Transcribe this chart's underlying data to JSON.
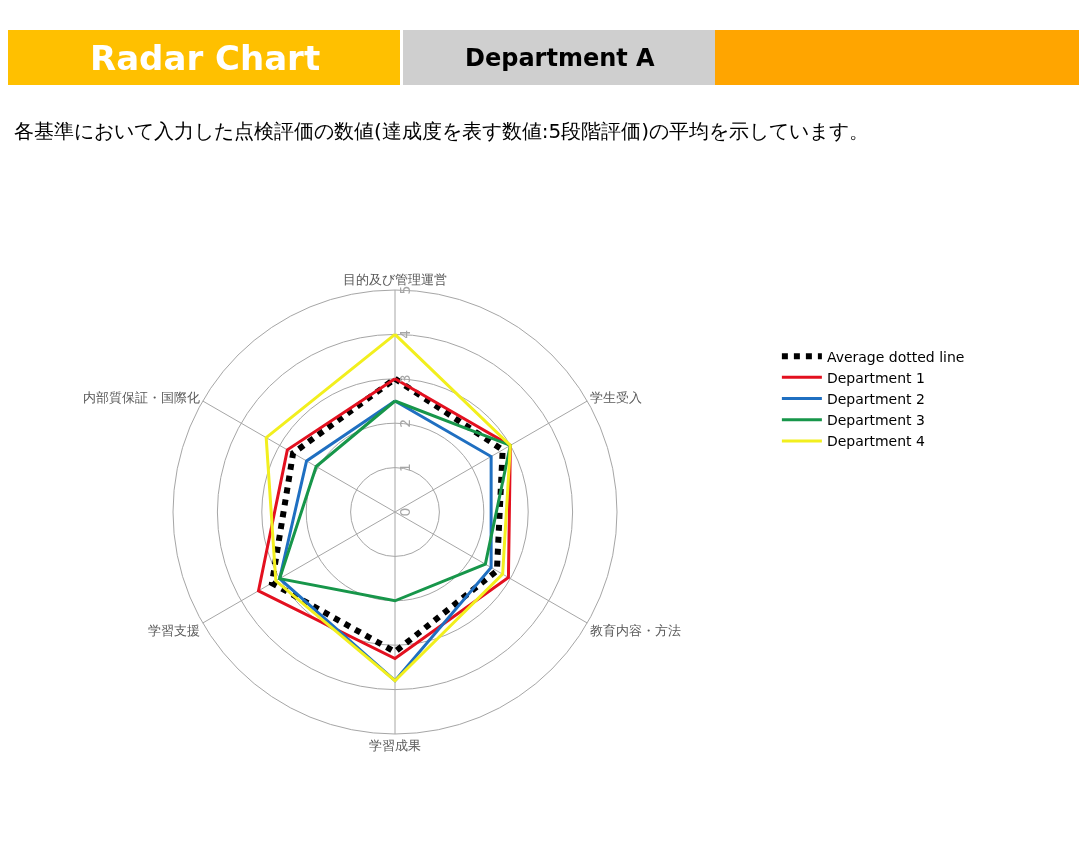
{
  "chart_data": {
    "type": "radar",
    "title": "Radar Chart",
    "subtitle": "Department A",
    "annotations": [
      "各基準において入力した点検評価の数値(達成度を表す数値:5段階評価)の平均を示しています。"
    ],
    "categories": [
      "目的及び管理運営",
      "学生受入",
      "教育内容・方法",
      "学習成果",
      "学習支援",
      "内部質保証・国際化"
    ],
    "series": [
      {
        "name": "Average dotted line",
        "color": "#000000",
        "line_style": "dotted",
        "values": [
          3,
          2.8,
          2.65,
          3.15,
          3.2,
          2.65
        ]
      },
      {
        "name": "Department 1",
        "color": "#e3101f",
        "values": [
          3,
          3,
          2.95,
          3.3,
          3.55,
          2.8
        ]
      },
      {
        "name": "Department 2",
        "color": "#1f6fc1",
        "values": [
          2.5,
          2.5,
          2.5,
          3.8,
          3,
          2.3
        ]
      },
      {
        "name": "Department 3",
        "color": "#17964a",
        "values": [
          2.5,
          3,
          2.35,
          2,
          3,
          2.05
        ]
      },
      {
        "name": "Department 4",
        "color": "#f2ef1e",
        "values": [
          4,
          3,
          2.8,
          3.8,
          3.1,
          3.35
        ]
      }
    ],
    "ylim": [
      0,
      5
    ],
    "yticks": [
      0,
      1,
      2,
      3,
      4,
      5
    ],
    "grid": true,
    "legend": "right",
    "marker": "none",
    "line_style": "solid"
  }
}
